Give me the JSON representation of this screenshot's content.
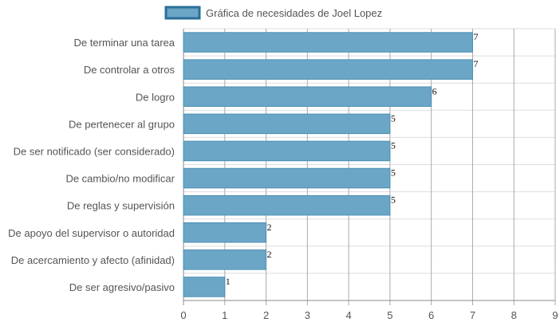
{
  "chart_data": {
    "type": "bar",
    "orientation": "horizontal",
    "categories": [
      "De terminar una tarea",
      "De controlar a otros",
      "De logro",
      "De pertenecer al grupo",
      "De ser notificado (ser considerado)",
      "De cambio/no modificar",
      "De reglas y supervisión",
      "De apoyo del supervisor o autoridad",
      "De acercamiento y afecto (afinidad)",
      "De ser agresivo/pasivo"
    ],
    "series": [
      {
        "name": "Gráfica de necesidades de Joel Lopez",
        "values": [
          7,
          7,
          6,
          5,
          5,
          5,
          5,
          2,
          2,
          1
        ]
      }
    ],
    "xlim": [
      0,
      9
    ],
    "xticks": [
      "0",
      "1",
      "2",
      "3",
      "4",
      "5",
      "6",
      "7",
      "8",
      "9"
    ],
    "grid": true,
    "legend_position": "top-center",
    "data_labels": true,
    "colors": {
      "bar_fill": "#6ba6c6",
      "bar_stroke": "#4d8fb3",
      "legend_fill": "#6ba6c6",
      "legend_stroke": "#2a6f99",
      "grid": "#dddddd",
      "grid_vertical": "#aaaaaa"
    }
  }
}
